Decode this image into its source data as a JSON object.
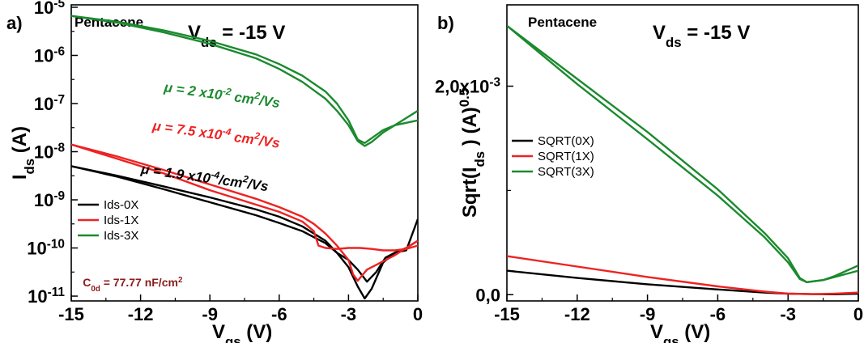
{
  "colors": {
    "s0": "#000000",
    "s1": "#ee2222",
    "s3": "#1b8a2e",
    "cap": "#8b1a1a"
  },
  "chart_data": [
    {
      "panel": "a)",
      "type": "line",
      "label": "Pentacene",
      "vds_main": "V",
      "vds_sub": "ds",
      "vds_value": "= -15 V",
      "xlabel_main": "V",
      "xlabel_sub": "gs",
      "xlabel_unit": "(V)",
      "ylabel_main": "I",
      "ylabel_sub": "ds",
      "ylabel_unit": "(A)",
      "y_scale": "log",
      "xlim": [
        -15,
        0
      ],
      "ylim_exp": [
        -11.1,
        -4.95
      ],
      "x_ticks": [
        {
          "v": -15,
          "t": "-15"
        },
        {
          "v": -12,
          "t": "-12"
        },
        {
          "v": -9,
          "t": "-9"
        },
        {
          "v": -6,
          "t": "-6"
        },
        {
          "v": -3,
          "t": "-3"
        },
        {
          "v": 0,
          "t": "0"
        }
      ],
      "y_ticks": [
        {
          "e": -5,
          "b": "10",
          "s": "-5"
        },
        {
          "e": -6,
          "b": "10",
          "s": "-6"
        },
        {
          "e": -7,
          "b": "10",
          "s": "-7"
        },
        {
          "e": -8,
          "b": "10",
          "s": "-8"
        },
        {
          "e": -9,
          "b": "10",
          "s": "-9"
        },
        {
          "e": -10,
          "b": "10",
          "s": "-10"
        },
        {
          "e": -11,
          "b": "10",
          "s": "-11"
        }
      ],
      "legend": {
        "position": "lower-left",
        "items": [
          {
            "name": "Ids-0X",
            "color": "#000000"
          },
          {
            "name": "Ids-1X",
            "color": "#ee2222"
          },
          {
            "name": "Ids-3X",
            "color": "#1b8a2e"
          }
        ]
      },
      "annotations": [
        {
          "pre": "μ = 2 x10",
          "sup": "-2",
          "mid": " cm",
          "sup2": "2",
          "post": "/Vs",
          "color": "#1b8a2e",
          "x": -11.0,
          "y": -6.75
        },
        {
          "pre": "μ = 7.5 x10",
          "sup": "-4",
          "mid": " cm",
          "sup2": "2",
          "post": "/Vs",
          "color": "#ee2222",
          "x": -11.5,
          "y": -7.55
        },
        {
          "pre": "μ = 1.9 x10",
          "sup": "-4",
          "mid": "/cm",
          "sup2": "2",
          "post": "/Vs",
          "color": "#000000",
          "x": -12.0,
          "y": -8.45
        }
      ],
      "capacitance": {
        "pre": "C",
        "sub": "0d",
        "post": " = 77.77 nF/cm",
        "sup": "2",
        "x": -14.5,
        "y": -10.8
      },
      "series": [
        {
          "name": "Ids-0X",
          "color": "#000000",
          "curves": [
            {
              "x": [
                -15,
                -13,
                -11,
                -9,
                -7,
                -6,
                -5,
                -4,
                -3.5,
                -3,
                -2.6,
                -2.3,
                -2.0,
                -1.5,
                -1.0,
                -0.5,
                0
              ],
              "y": [
                -8.3,
                -8.5,
                -8.72,
                -8.95,
                -9.2,
                -9.35,
                -9.55,
                -9.85,
                -10.1,
                -10.4,
                -10.8,
                -11.05,
                -10.85,
                -10.3,
                -10.1,
                -10.05,
                -9.4
              ]
            },
            {
              "x": [
                -15,
                -13,
                -11,
                -9,
                -7,
                -6,
                -5,
                -4,
                -3.5,
                -3,
                -2.6,
                -2.2,
                -1.8,
                -1.4,
                -1.0,
                -0.5,
                0
              ],
              "y": [
                -8.3,
                -8.52,
                -8.78,
                -9.05,
                -9.32,
                -9.48,
                -9.65,
                -9.9,
                -10.1,
                -10.25,
                -10.45,
                -10.7,
                -10.5,
                -10.2,
                -10.1,
                -10.0,
                -9.85
              ]
            }
          ]
        },
        {
          "name": "Ids-1X",
          "color": "#ee2222",
          "curves": [
            {
              "x": [
                -15,
                -13,
                -11,
                -9,
                -7,
                -6,
                -5,
                -4.5,
                -4,
                -3.5,
                -3,
                -2.8,
                -2.6,
                -2.2,
                -1.8,
                -1.4,
                -1.0,
                -0.5,
                0
              ],
              "y": [
                -7.85,
                -8.1,
                -8.38,
                -8.68,
                -8.98,
                -9.15,
                -9.35,
                -9.5,
                -9.7,
                -9.95,
                -10.25,
                -10.55,
                -10.68,
                -10.45,
                -10.35,
                -10.25,
                -10.15,
                -10.0,
                -9.85
              ]
            },
            {
              "x": [
                -15,
                -13,
                -11,
                -9,
                -7,
                -6,
                -5,
                -4.5,
                -4.3,
                -4,
                -3.5,
                -3,
                -2.5,
                -2,
                -1.5,
                -1.0,
                -0.5,
                0
              ],
              "y": [
                -7.85,
                -8.15,
                -8.45,
                -8.8,
                -9.1,
                -9.25,
                -9.45,
                -9.65,
                -9.95,
                -10.0,
                -10.02,
                -10.0,
                -10.0,
                -10.02,
                -10.05,
                -10.05,
                -10.02,
                -9.95
              ]
            }
          ]
        },
        {
          "name": "Ids-3X",
          "color": "#1b8a2e",
          "curves": [
            {
              "x": [
                -15,
                -13,
                -11,
                -9,
                -7,
                -6,
                -5,
                -4,
                -3.5,
                -3,
                -2.6,
                -2.3,
                -2.0,
                -1.5,
                -1.0,
                -0.5,
                0
              ],
              "y": [
                -5.18,
                -5.3,
                -5.48,
                -5.7,
                -5.98,
                -6.18,
                -6.42,
                -6.75,
                -7.0,
                -7.35,
                -7.75,
                -7.82,
                -7.72,
                -7.55,
                -7.45,
                -7.4,
                -7.35
              ]
            },
            {
              "x": [
                -15,
                -13,
                -11,
                -9,
                -7,
                -6,
                -5,
                -4,
                -3.5,
                -3,
                -2.6,
                -2.3,
                -2.0,
                -1.5,
                -1.0,
                -0.5,
                0
              ],
              "y": [
                -5.18,
                -5.32,
                -5.52,
                -5.76,
                -6.06,
                -6.28,
                -6.55,
                -6.9,
                -7.15,
                -7.45,
                -7.78,
                -7.88,
                -7.8,
                -7.6,
                -7.45,
                -7.3,
                -7.15
              ]
            }
          ]
        }
      ]
    },
    {
      "panel": "b)",
      "type": "line",
      "label": "Pentacene",
      "vds_main": "V",
      "vds_sub": "ds",
      "vds_value": "= -15 V",
      "xlabel_main": "V",
      "xlabel_sub": "gs",
      "xlabel_unit": "(V)",
      "ylabel_main": "Sqrt(I",
      "ylabel_sub": "ds",
      "ylabel_unit": ") (A)",
      "ylabel_sup": "0.5",
      "y_scale": "linear",
      "xlim": [
        -15,
        0
      ],
      "ylim": [
        -6e-05,
        0.00278
      ],
      "x_ticks": [
        {
          "v": -15,
          "t": "-15"
        },
        {
          "v": -12,
          "t": "-12"
        },
        {
          "v": -9,
          "t": "-9"
        },
        {
          "v": -6,
          "t": "-6"
        },
        {
          "v": -3,
          "t": "-3"
        },
        {
          "v": 0,
          "t": "0"
        }
      ],
      "y_ticks": [
        {
          "v": 0.0,
          "t": "0,0"
        },
        {
          "v": 0.002,
          "t": "2,0x10",
          "s": "-3"
        }
      ],
      "y_minor_ticks": [
        0.001
      ],
      "legend": {
        "position": "upper-left",
        "items": [
          {
            "name": "SQRT(0X)",
            "color": "#000000"
          },
          {
            "name": "SQRT(1X)",
            "color": "#ee2222"
          },
          {
            "name": "SQRT(3X)",
            "color": "#1b8a2e"
          }
        ]
      },
      "series": [
        {
          "name": "SQRT(0X)",
          "color": "#000000",
          "curves": [
            {
              "x": [
                -15,
                -12,
                -9,
                -6,
                -4,
                -3,
                -2,
                -1,
                0
              ],
              "y": [
                0.00023,
                0.00016,
                0.0001,
                5e-05,
                2e-05,
                1e-05,
                5e-06,
                4e-06,
                1e-05
              ]
            }
          ]
        },
        {
          "name": "SQRT(1X)",
          "color": "#ee2222",
          "curves": [
            {
              "x": [
                -15,
                -12,
                -9,
                -6,
                -4,
                -3,
                -2,
                -1,
                0
              ],
              "y": [
                0.00037,
                0.00027,
                0.00017,
                8e-05,
                3e-05,
                1e-05,
                5e-06,
                1e-05,
                2e-05
              ]
            }
          ]
        },
        {
          "name": "SQRT(3X)",
          "color": "#1b8a2e",
          "curves": [
            {
              "x": [
                -15,
                -12,
                -9,
                -6,
                -4,
                -3,
                -2.5,
                -2.2,
                -1.5,
                -1,
                -0.5,
                0
              ],
              "y": [
                0.00258,
                0.00207,
                0.00156,
                0.00101,
                0.00059,
                0.00035,
                0.00016,
                0.00012,
                0.00014,
                0.00017,
                0.0002,
                0.00023
              ]
            },
            {
              "x": [
                -15,
                -12,
                -9,
                -6,
                -4,
                -3,
                -2.5,
                -2.2,
                -1.5,
                -1,
                -0.5,
                0
              ],
              "y": [
                0.00258,
                0.00202,
                0.00149,
                0.00095,
                0.00055,
                0.00031,
                0.00015,
                0.00012,
                0.00014,
                0.00018,
                0.00023,
                0.00028
              ]
            }
          ]
        }
      ]
    }
  ]
}
